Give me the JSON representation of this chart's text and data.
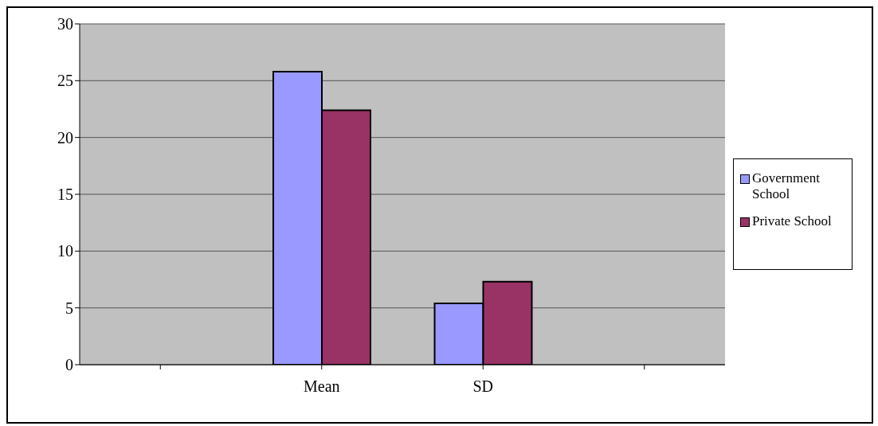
{
  "chart_data": {
    "type": "bar",
    "categories": [
      null,
      "Mean",
      "SD",
      null
    ],
    "series": [
      {
        "name": "Government School",
        "color": "#9999ff",
        "values": [
          null,
          25.8,
          5.4,
          null
        ]
      },
      {
        "name": "Private School",
        "color": "#993366",
        "values": [
          null,
          22.4,
          7.3,
          null
        ]
      }
    ],
    "ylim": [
      0,
      30
    ],
    "yticks": [
      0,
      5,
      10,
      15,
      20,
      25,
      30
    ],
    "grid": "y",
    "legend": "right"
  }
}
